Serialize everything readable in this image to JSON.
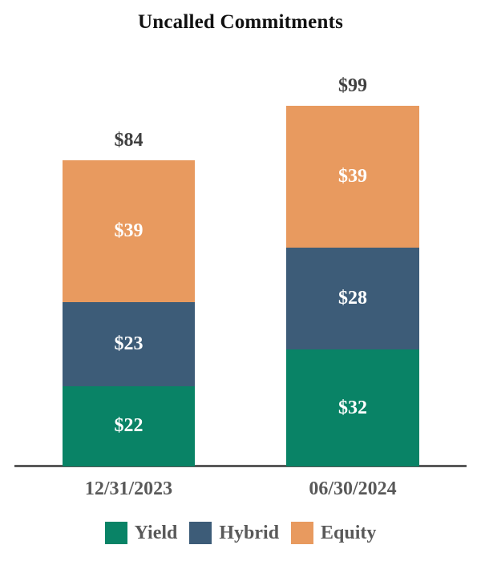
{
  "chart_data": {
    "type": "bar",
    "stacked": true,
    "title": "Uncalled Commitments",
    "value_prefix": "$",
    "categories": [
      "12/31/2023",
      "06/30/2024"
    ],
    "series": [
      {
        "name": "Yield",
        "color": "#098366",
        "values": [
          22,
          32
        ]
      },
      {
        "name": "Hybrid",
        "color": "#3D5C78",
        "values": [
          23,
          28
        ]
      },
      {
        "name": "Equity",
        "color": "#E89A5F",
        "values": [
          39,
          39
        ]
      }
    ],
    "totals": [
      84,
      99
    ],
    "total_labels": [
      "$84",
      "$99"
    ],
    "segment_labels": [
      [
        "$22",
        "$23",
        "$39"
      ],
      [
        "$32",
        "$28",
        "$39"
      ]
    ],
    "legend_position": "bottom",
    "legend_entries": [
      "Yield",
      "Hybrid",
      "Equity"
    ],
    "grid": false,
    "y_axis_shown": false,
    "ylim": [
      0,
      99
    ]
  },
  "styles": {
    "background": "#ffffff",
    "title_color": "#111111",
    "total_label_color": "#404040",
    "axis_label_color": "#595959",
    "axis_line_color": "#595959",
    "segment_label_color": "#ffffff"
  }
}
